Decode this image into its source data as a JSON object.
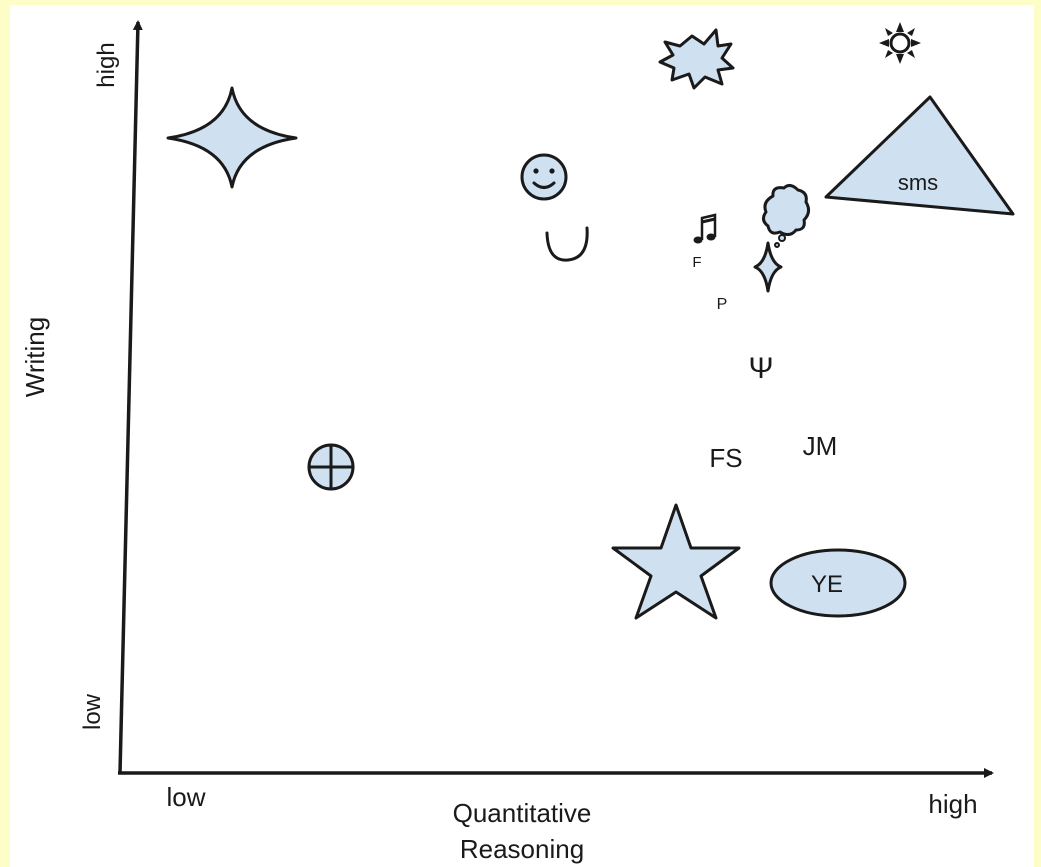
{
  "axes": {
    "x_label_line1": "Quantitative",
    "x_label_line2": "Reasoning",
    "x_low": "low",
    "x_high": "high",
    "y_label": "Writing",
    "y_low": "low",
    "y_high": "high"
  },
  "labels": {
    "sms": "sms",
    "ye": "YE",
    "fs": "FS",
    "jm": "JM",
    "f": "F",
    "p": "P",
    "psi": "Ψ"
  },
  "icons": [
    "four-point-star-icon",
    "circled-plus-icon",
    "smiley-face-icon",
    "cup-curve-icon",
    "explosion-icon",
    "sun-icon",
    "triangle-icon",
    "music-note-icon",
    "cloud-icon",
    "small-four-point-star-icon",
    "star-icon",
    "ellipse-icon"
  ],
  "colors": {
    "shape_fill": "#cfe0f1",
    "background_border": "#fdfdc8",
    "ink": "#1a1a1a"
  }
}
